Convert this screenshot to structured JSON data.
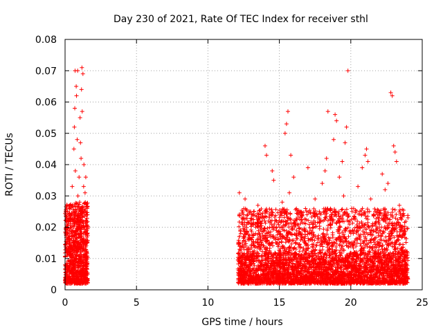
{
  "chart_data": {
    "type": "scatter",
    "title": "Day 230 of 2021, Rate Of TEC Index for receiver sthl",
    "xlabel": "GPS time / hours",
    "ylabel": "ROTI / TECUs",
    "xlim": [
      0,
      25
    ],
    "ylim": [
      0,
      0.08
    ],
    "xticks": [
      0,
      5,
      10,
      15,
      20,
      25
    ],
    "xtick_labels": [
      "0",
      "5",
      "10",
      "15",
      "20",
      "25"
    ],
    "yticks": [
      0,
      0.01,
      0.02,
      0.03,
      0.04,
      0.05,
      0.06,
      0.07,
      0.08
    ],
    "ytick_labels": [
      "0",
      "0.01",
      "0.02",
      "0.03",
      "0.04",
      "0.05",
      "0.06",
      "0.07",
      "0.08"
    ],
    "grid": true,
    "marker": "plus",
    "color": "#ff0000",
    "series": [
      {
        "name": "ROTI",
        "points": [
          [
            0.05,
            0.004
          ],
          [
            0.1,
            0.012
          ],
          [
            0.15,
            0.018
          ],
          [
            0.2,
            0.009
          ],
          [
            0.25,
            0.022
          ],
          [
            0.3,
            0.006
          ],
          [
            0.35,
            0.015
          ],
          [
            0.4,
            0.027
          ],
          [
            0.45,
            0.011
          ],
          [
            0.5,
            0.033
          ],
          [
            0.55,
            0.019
          ],
          [
            0.6,
            0.008
          ],
          [
            0.62,
            0.045
          ],
          [
            0.65,
            0.052
          ],
          [
            0.68,
            0.058
          ],
          [
            0.7,
            0.07
          ],
          [
            0.72,
            0.038
          ],
          [
            0.75,
            0.024
          ],
          [
            0.78,
            0.065
          ],
          [
            0.8,
            0.062
          ],
          [
            0.82,
            0.014
          ],
          [
            0.85,
            0.048
          ],
          [
            0.88,
            0.07
          ],
          [
            0.9,
            0.03
          ],
          [
            0.92,
            0.021
          ],
          [
            0.95,
            0.007
          ],
          [
            0.98,
            0.036
          ],
          [
            1.0,
            0.017
          ],
          [
            1.02,
            0.028
          ],
          [
            1.05,
            0.055
          ],
          [
            1.08,
            0.047
          ],
          [
            1.1,
            0.01
          ],
          [
            1.12,
            0.042
          ],
          [
            1.15,
            0.064
          ],
          [
            1.18,
            0.071
          ],
          [
            1.2,
            0.057
          ],
          [
            1.22,
            0.025
          ],
          [
            1.25,
            0.069
          ],
          [
            1.28,
            0.013
          ],
          [
            1.3,
            0.033
          ],
          [
            1.32,
            0.04
          ],
          [
            1.35,
            0.02
          ],
          [
            1.38,
            0.005
          ],
          [
            1.4,
            0.031
          ],
          [
            1.45,
            0.036
          ],
          [
            1.5,
            0.012
          ],
          [
            1.55,
            0.026
          ],
          [
            0.3,
            0.003
          ],
          [
            0.7,
            0.002
          ],
          [
            1.1,
            0.004
          ],
          [
            1.4,
            0.003
          ],
          [
            12.2,
            0.031
          ],
          [
            12.3,
            0.018
          ],
          [
            12.4,
            0.009
          ],
          [
            12.5,
            0.024
          ],
          [
            12.6,
            0.029
          ],
          [
            12.8,
            0.013
          ],
          [
            13.0,
            0.006
          ],
          [
            13.2,
            0.021
          ],
          [
            13.5,
            0.027
          ],
          [
            13.8,
            0.008
          ],
          [
            14.0,
            0.046
          ],
          [
            14.1,
            0.043
          ],
          [
            14.3,
            0.015
          ],
          [
            14.5,
            0.038
          ],
          [
            14.6,
            0.035
          ],
          [
            14.8,
            0.022
          ],
          [
            15.0,
            0.011
          ],
          [
            15.2,
            0.028
          ],
          [
            15.4,
            0.05
          ],
          [
            15.5,
            0.053
          ],
          [
            15.6,
            0.057
          ],
          [
            15.7,
            0.031
          ],
          [
            15.8,
            0.043
          ],
          [
            16.0,
            0.036
          ],
          [
            16.2,
            0.019
          ],
          [
            16.5,
            0.025
          ],
          [
            16.8,
            0.009
          ],
          [
            17.0,
            0.039
          ],
          [
            17.2,
            0.016
          ],
          [
            17.5,
            0.029
          ],
          [
            17.8,
            0.012
          ],
          [
            18.0,
            0.034
          ],
          [
            18.2,
            0.038
          ],
          [
            18.3,
            0.042
          ],
          [
            18.4,
            0.057
          ],
          [
            18.6,
            0.023
          ],
          [
            18.8,
            0.048
          ],
          [
            18.9,
            0.056
          ],
          [
            19.0,
            0.054
          ],
          [
            19.2,
            0.036
          ],
          [
            19.4,
            0.041
          ],
          [
            19.5,
            0.03
          ],
          [
            19.6,
            0.047
          ],
          [
            19.7,
            0.052
          ],
          [
            19.8,
            0.07
          ],
          [
            20.0,
            0.018
          ],
          [
            20.2,
            0.026
          ],
          [
            20.5,
            0.033
          ],
          [
            20.8,
            0.039
          ],
          [
            21.0,
            0.043
          ],
          [
            21.1,
            0.045
          ],
          [
            21.2,
            0.041
          ],
          [
            21.4,
            0.029
          ],
          [
            21.6,
            0.024
          ],
          [
            21.8,
            0.014
          ],
          [
            22.0,
            0.021
          ],
          [
            22.2,
            0.037
          ],
          [
            22.4,
            0.032
          ],
          [
            22.6,
            0.034
          ],
          [
            22.8,
            0.063
          ],
          [
            22.9,
            0.062
          ],
          [
            23.0,
            0.046
          ],
          [
            23.1,
            0.044
          ],
          [
            23.2,
            0.041
          ],
          [
            23.4,
            0.027
          ],
          [
            23.6,
            0.019
          ],
          [
            23.8,
            0.01
          ],
          [
            24.0,
            0.023
          ],
          [
            12.5,
            0.004
          ],
          [
            13.0,
            0.003
          ],
          [
            14.0,
            0.004
          ],
          [
            15.0,
            0.002
          ],
          [
            16.0,
            0.003
          ],
          [
            17.0,
            0.004
          ],
          [
            18.0,
            0.003
          ],
          [
            19.0,
            0.002
          ],
          [
            20.0,
            0.004
          ],
          [
            21.0,
            0.003
          ],
          [
            22.0,
            0.002
          ],
          [
            23.0,
            0.003
          ],
          [
            23.8,
            0.004
          ]
        ]
      }
    ],
    "dense_clusters": [
      {
        "x_range": [
          0.0,
          1.6
        ],
        "y_range": [
          0.002,
          0.028
        ],
        "count": 900
      },
      {
        "x_range": [
          12.1,
          24.0
        ],
        "y_range": [
          0.002,
          0.026
        ],
        "count": 2600
      },
      {
        "x_range": [
          12.1,
          24.0
        ],
        "y_range": [
          0.002,
          0.012
        ],
        "count": 1400
      }
    ]
  }
}
